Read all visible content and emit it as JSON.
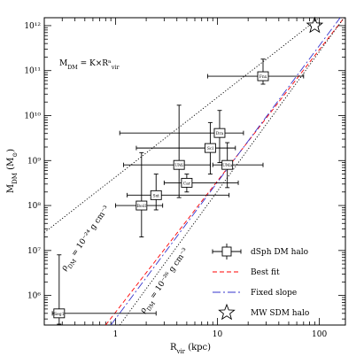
{
  "chart_data": {
    "type": "scatter",
    "xlabel": "R_vir (kpc)",
    "ylabel": "M_DM (M_⊙)",
    "xscale": "log",
    "yscale": "log",
    "xlim": [
      0.2,
      180
    ],
    "ylim": [
      220000.0,
      1500000000000.0
    ],
    "x_ticks": [
      {
        "value": 1,
        "label": "1"
      },
      {
        "value": 10,
        "label": "10"
      },
      {
        "value": 100,
        "label": "100"
      }
    ],
    "y_ticks": [
      {
        "value": 1000000.0,
        "label": "10⁶"
      },
      {
        "value": 10000000.0,
        "label": "10⁷"
      },
      {
        "value": 100000000.0,
        "label": "10⁸"
      },
      {
        "value": 1000000000.0,
        "label": "10⁹"
      },
      {
        "value": 10000000000.0,
        "label": "10¹⁰"
      },
      {
        "value": 100000000000.0,
        "label": "10¹¹"
      },
      {
        "value": 1000000000000.0,
        "label": "10¹²"
      }
    ],
    "formula": "M_DM = K×Rⁿ_vir",
    "series": [
      {
        "name": "dSph DM halo",
        "points": [
          {
            "label": "Seg1",
            "x": 0.28,
            "y": 400000.0,
            "xerr": [
              0.24,
              2.5
            ],
            "yerr": [
              230000.0,
              8000000.0
            ]
          },
          {
            "label": "BoöI",
            "x": 1.8,
            "y": 100000000.0,
            "xerr": [
              1.0,
              2.9
            ],
            "yerr": [
              20000000.0,
              1500000000.0
            ]
          },
          {
            "label": "Sxt",
            "x": 2.5,
            "y": 170000000.0,
            "xerr": [
              1.3,
              13
            ],
            "yerr": [
              80000000.0,
              500000000.0
            ]
          },
          {
            "label": "Car",
            "x": 5.0,
            "y": 320000000.0,
            "xerr": [
              3.0,
              16
            ],
            "yerr": [
              200000000.0,
              500000000.0
            ]
          },
          {
            "label": "UMi",
            "x": 4.2,
            "y": 800000000.0,
            "xerr": [
              1.2,
              8.5
            ],
            "yerr": [
              150000000.0,
              17000000000.0
            ]
          },
          {
            "label": "Scl",
            "x": 8.5,
            "y": 1900000000.0,
            "xerr": [
              1.6,
              15
            ],
            "yerr": [
              500000000.0,
              7000000000.0
            ]
          },
          {
            "label": "Dra",
            "x": 10.5,
            "y": 4100000000.0,
            "xerr": [
              1.1,
              18
            ],
            "yerr": [
              900000000.0,
              13000000000.0
            ]
          },
          {
            "label": "UMa",
            "x": 12.5,
            "y": 800000000.0,
            "xerr": [
              9,
              28
            ],
            "yerr": [
              250000000.0,
              2500000000.0
            ]
          },
          {
            "label": "Fnx",
            "x": 28,
            "y": 75000000000.0,
            "xerr": [
              8,
              70
            ],
            "yerr": [
              50000000000.0,
              180000000000.0
            ]
          }
        ]
      },
      {
        "name": "MW SDM halo",
        "points": [
          {
            "x": 90,
            "y": 1000000000000.0
          }
        ]
      }
    ],
    "lines": [
      {
        "name": "Best fit",
        "style": "dashed",
        "color": "#ff0000",
        "points": [
          [
            0.8,
            220000.0
          ],
          [
            175,
            1500000000000.0
          ]
        ]
      },
      {
        "name": "Fixed slope",
        "style": "dash-dot",
        "color": "#3333cc",
        "points": [
          [
            0.9,
            220000.0
          ],
          [
            160,
            1500000000000.0
          ]
        ]
      },
      {
        "name": "ρ_DM = 10⁻²⁴ g cm⁻³",
        "style": "dotted",
        "color": "#000000",
        "points": [
          [
            0.2,
            25000000.0
          ],
          [
            100,
            1500000000000.0
          ]
        ]
      },
      {
        "name": "ρ_DM = 10⁻²⁶ g cm⁻³",
        "style": "dotted",
        "color": "#000000",
        "points": [
          [
            1.1,
            220000.0
          ],
          [
            175,
            1500000000000.0
          ]
        ]
      }
    ],
    "annotations": [
      {
        "text": "ρ_DM = 10⁻²⁴ g cm⁻³",
        "x": 0.32,
        "y": 3500000.0,
        "rotation": -55
      },
      {
        "text": "ρ_DM = 10⁻²⁶ g cm⁻³",
        "x": 1.9,
        "y": 400000.0,
        "rotation": -55
      }
    ],
    "legend": {
      "position": "bottom-right",
      "items": [
        {
          "symbol": "errorbar-square",
          "label": "dSph DM halo"
        },
        {
          "symbol": "red-dashed",
          "label": "Best fit"
        },
        {
          "symbol": "blue-dashdot",
          "label": "Fixed slope"
        },
        {
          "symbol": "star",
          "label": "MW SDM halo"
        }
      ]
    }
  }
}
